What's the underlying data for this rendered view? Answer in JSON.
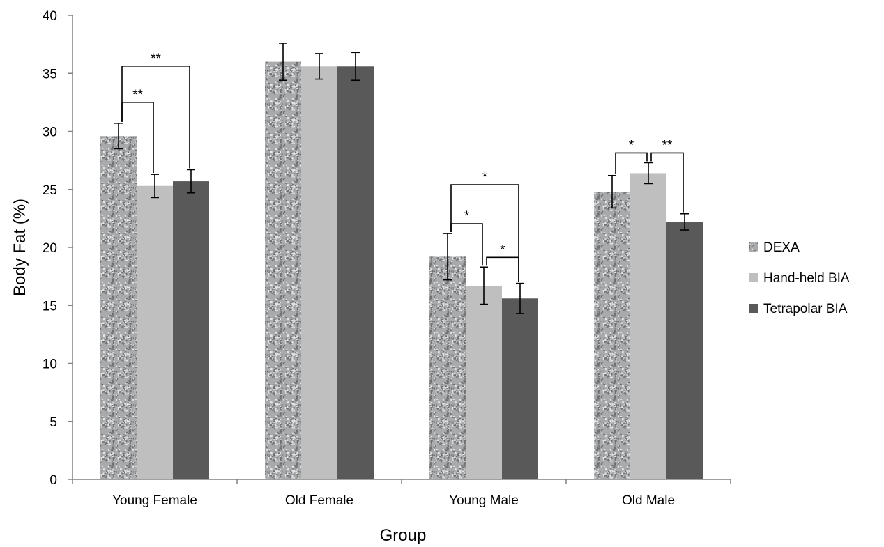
{
  "chart_data": {
    "type": "bar",
    "xlabel": "Group",
    "ylabel": "Body Fat (%)",
    "ylim": [
      0,
      40
    ],
    "yticks": [
      0,
      5,
      10,
      15,
      20,
      25,
      30,
      35,
      40
    ],
    "grid": false,
    "legend_position": "right",
    "categories": [
      "Young Female",
      "Old Female",
      "Young Male",
      "Old Male"
    ],
    "series": [
      {
        "name": "DEXA",
        "color": "#a9aaab",
        "pattern": "speckled",
        "values": [
          29.6,
          36.0,
          19.2,
          24.8
        ],
        "error": [
          1.1,
          1.6,
          2.0,
          1.4
        ]
      },
      {
        "name": "Hand-held BIA",
        "color": "#bfbfbf",
        "values": [
          25.3,
          35.6,
          16.7,
          26.4
        ],
        "error": [
          1.0,
          1.1,
          1.6,
          0.9
        ]
      },
      {
        "name": "Tetrapolar BIA",
        "color": "#595959",
        "values": [
          25.7,
          35.6,
          15.6,
          22.2
        ],
        "error": [
          1.0,
          1.2,
          1.3,
          0.7
        ]
      }
    ],
    "significance": [
      {
        "category": 0,
        "from_series": 0,
        "to_series": 2,
        "label": "**",
        "level": 1
      },
      {
        "category": 0,
        "from_series": 0,
        "to_series": 1,
        "label": "**",
        "level": 0
      },
      {
        "category": 2,
        "from_series": 0,
        "to_series": 2,
        "label": "*",
        "level": 1
      },
      {
        "category": 2,
        "from_series": 0,
        "to_series": 1,
        "label": "*",
        "level": 0
      },
      {
        "category": 2,
        "from_series": 1,
        "to_series": 2,
        "label": "*",
        "level": 0
      },
      {
        "category": 3,
        "from_series": 0,
        "to_series": 1,
        "label": "*",
        "level": 0
      },
      {
        "category": 3,
        "from_series": 1,
        "to_series": 2,
        "label": "**",
        "level": 0
      }
    ]
  }
}
